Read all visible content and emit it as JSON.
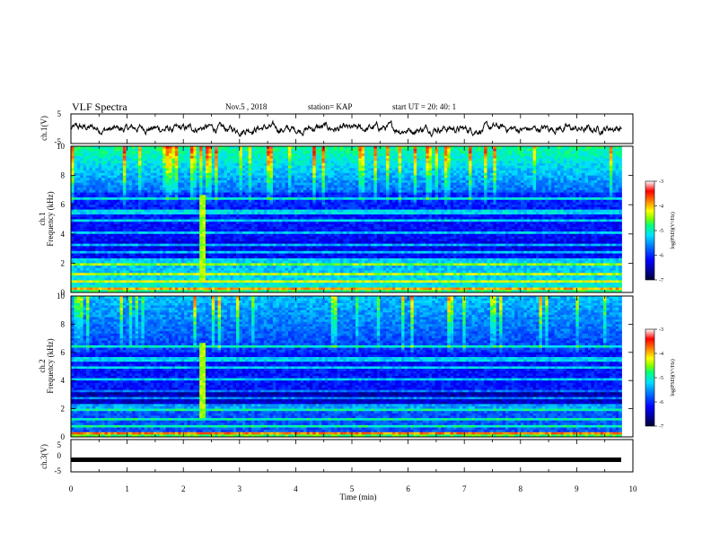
{
  "header": {
    "title": "VLF Spectra",
    "date": "Nov.5 , 2018",
    "station": "station= KAP",
    "start_time": "start UT = 20: 40: 1"
  },
  "colors": {
    "colormap": [
      "#000033",
      "#00008b",
      "#0000ff",
      "#0080ff",
      "#00e0ff",
      "#00ff80",
      "#80ff00",
      "#ffff00",
      "#ff8000",
      "#ff0000",
      "#ffffff"
    ],
    "waveform": "#000000"
  },
  "chart_data": [
    {
      "type": "line",
      "name_label": "ch.1(V)",
      "ylabel": "ch.1(V)",
      "xlim": [
        0,
        10
      ],
      "ylim": [
        -5,
        5
      ],
      "yticks": [
        "5",
        "-5"
      ],
      "xrange_data": [
        0,
        9.8
      ],
      "series": [
        {
          "name": "ch.1",
          "mean": 0,
          "amplitude_approx": 2
        }
      ]
    },
    {
      "type": "heatmap",
      "ylabel_ch": "ch.1",
      "ylabel": "Frequency (kHz)",
      "xlim": [
        0,
        10
      ],
      "ylim": [
        0,
        10
      ],
      "yticks": [
        "0",
        "2",
        "4",
        "6",
        "8",
        "10"
      ],
      "colorbar": {
        "label": "log(PSD)(V²/Hz)",
        "range": [
          -7,
          -3
        ],
        "ticks": [
          "-3",
          "-4",
          "-5",
          "-6",
          "-7"
        ]
      },
      "event_time_min": 2.35
    },
    {
      "type": "heatmap",
      "ylabel_ch": "ch.2",
      "ylabel": "Frequency (kHz)",
      "xlim": [
        0,
        10
      ],
      "ylim": [
        0,
        10
      ],
      "yticks": [
        "0",
        "2",
        "4",
        "6",
        "8",
        "10"
      ],
      "colorbar": {
        "label": "log(PSD)(V²/Hz)",
        "range": [
          -7,
          -3
        ],
        "ticks": [
          "-3",
          "-4",
          "-5",
          "-6",
          "-7"
        ]
      },
      "event_time_min": 2.35
    },
    {
      "type": "line",
      "name_label": "ch.3(V)",
      "ylabel": "ch.3(V)",
      "xlim": [
        0,
        10
      ],
      "ylim": [
        -5,
        5
      ],
      "yticks": [
        "5",
        "0",
        "-5"
      ],
      "series": [
        {
          "name": "ch.3",
          "value": 0
        }
      ]
    }
  ],
  "xaxis": {
    "label": "Time (min)",
    "ticks": [
      "0",
      "1",
      "2",
      "3",
      "4",
      "5",
      "6",
      "7",
      "8",
      "9",
      "10"
    ]
  }
}
